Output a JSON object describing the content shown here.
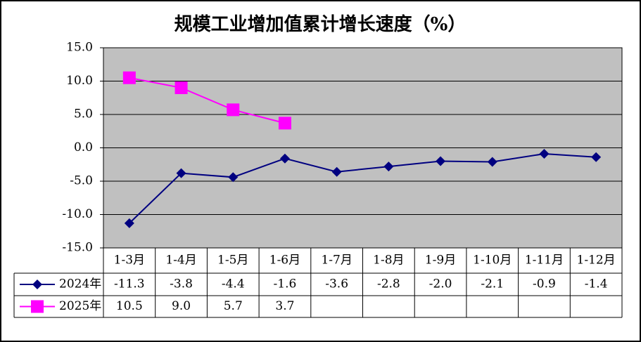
{
  "chart_data": {
    "type": "line",
    "title": "规模工业增加值累计增长速度（%）",
    "categories": [
      "1-3月",
      "1-4月",
      "1-5月",
      "1-6月",
      "1-7月",
      "1-8月",
      "1-9月",
      "1-10月",
      "1-11月",
      "1-12月"
    ],
    "series": [
      {
        "name": "2024年",
        "color": "#000080",
        "marker": "diamond",
        "values": [
          -11.3,
          -3.8,
          -4.4,
          -1.6,
          -3.6,
          -2.8,
          -2.0,
          -2.1,
          -0.9,
          -1.4
        ],
        "value_labels": [
          "-11.3",
          "-3.8",
          "-4.4",
          "-1.6",
          "-3.6",
          "-2.8",
          "-2.0",
          "-2.1",
          "-0.9",
          "-1.4"
        ]
      },
      {
        "name": "2025年",
        "color": "#ff00ff",
        "marker": "square",
        "values": [
          10.5,
          9.0,
          5.7,
          3.7,
          null,
          null,
          null,
          null,
          null,
          null
        ],
        "value_labels": [
          "10.5",
          "9.0",
          "5.7",
          "3.7",
          null,
          null,
          null,
          null,
          null,
          null
        ]
      }
    ],
    "ylim": [
      -15,
      15
    ],
    "yticks": [
      {
        "value": -15,
        "label": "-15.0"
      },
      {
        "value": -10,
        "label": "-10.0"
      },
      {
        "value": -5,
        "label": "-5.0"
      },
      {
        "value": 0,
        "label": "0.0"
      },
      {
        "value": 5,
        "label": "5.0"
      },
      {
        "value": 10,
        "label": "10.0"
      },
      {
        "value": 15,
        "label": "15.0"
      }
    ],
    "grid": true
  }
}
